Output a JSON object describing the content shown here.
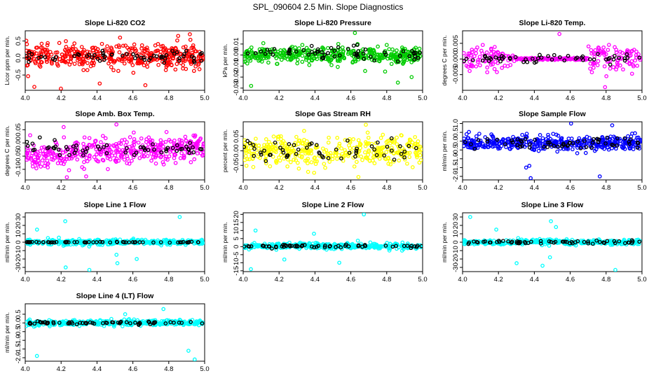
{
  "figure_title": "SPL_090604  2.5 Min. Slope Diagnostics",
  "chart_data": [
    {
      "type": "scatter",
      "title": "Slope Li-820 CO2",
      "ylabel": "Licor ppm per min.",
      "xlim": [
        4.0,
        5.0
      ],
      "ylim": [
        -0.95,
        0.8
      ],
      "xticks": [
        4.0,
        4.2,
        4.4,
        4.6,
        4.8,
        5.0
      ],
      "xtick_labels": [
        "4.0",
        "4.2",
        "4.4",
        "4.6",
        "4.8",
        "5.0"
      ],
      "yticks": [
        -0.5,
        0.0,
        0.5
      ],
      "ytick_labels": [
        "-0.5",
        "0.0",
        "0.5"
      ],
      "series": [
        {
          "name": "points",
          "color": "#ff0000",
          "center": 0.05,
          "spread": 0.28,
          "count": 420,
          "outlier_values": [
            -0.9,
            -0.85,
            0.7,
            0.65,
            -0.8,
            0.6,
            -0.75
          ]
        },
        {
          "name": "black",
          "color": "#000000",
          "center": 0.05,
          "spread": 0.15,
          "count": 60
        }
      ]
    },
    {
      "type": "scatter",
      "title": "Slope Li-820 Pressure",
      "ylabel": "kPa per min.",
      "xlim": [
        4.0,
        5.0
      ],
      "ylim": [
        -0.032,
        0.022
      ],
      "xticks": [
        4.0,
        4.2,
        4.4,
        4.6,
        4.8,
        5.0
      ],
      "xtick_labels": [
        "4.0",
        "4.2",
        "4.4",
        "4.6",
        "4.8",
        "5.0"
      ],
      "yticks": [
        -0.03,
        -0.02,
        -0.01,
        0.0,
        0.01
      ],
      "ytick_labels": [
        "-0.03",
        "-0.02",
        "-0.01",
        "0.00",
        "0.01"
      ],
      "series": [
        {
          "name": "points",
          "color": "#00cc00",
          "center": 0.0,
          "spread": 0.006,
          "count": 420,
          "outlier_values": [
            -0.025,
            -0.028,
            0.02,
            -0.02,
            -0.015
          ]
        },
        {
          "name": "black",
          "color": "#000000",
          "center": 0.002,
          "spread": 0.005,
          "count": 60
        }
      ]
    },
    {
      "type": "scatter",
      "title": "Slope Li-820 Temp.",
      "ylabel": "degrees C per min.",
      "xlim": [
        4.0,
        5.0
      ],
      "ylim": [
        -0.01,
        0.009
      ],
      "xticks": [
        4.0,
        4.2,
        4.4,
        4.6,
        4.8,
        5.0
      ],
      "xtick_labels": [
        "4.0",
        "4.2",
        "4.4",
        "4.6",
        "4.8",
        "5.0"
      ],
      "yticks": [
        -0.005,
        0.0,
        0.005
      ],
      "ytick_labels": [
        "-0.005",
        "0.000",
        "0.005"
      ],
      "series": [
        {
          "name": "points",
          "color": "#ff00ff",
          "center": 0.0,
          "spread": 0.0035,
          "count": 300,
          "quiet_range": [
            4.3,
            4.7
          ],
          "outlier_values": [
            -0.009,
            0.008
          ]
        },
        {
          "name": "black",
          "color": "#000000",
          "center": 0.0,
          "spread": 0.001,
          "count": 55
        }
      ]
    },
    {
      "type": "scatter",
      "title": "Slope Amb. Box Temp.",
      "ylabel": "degrees C per min.",
      "xlim": [
        4.0,
        5.0
      ],
      "ylim": [
        -0.14,
        0.08
      ],
      "xticks": [
        4.0,
        4.2,
        4.4,
        4.6,
        4.8,
        5.0
      ],
      "xtick_labels": [
        "4.0",
        "4.2",
        "4.4",
        "4.6",
        "4.8",
        "5.0"
      ],
      "yticks": [
        -0.1,
        -0.05,
        0.0,
        0.05
      ],
      "ytick_labels": [
        "-0.10",
        "-0.05",
        "0.00",
        "0.05"
      ],
      "series": [
        {
          "name": "points",
          "color": "#ff00ff",
          "center": -0.03,
          "spread": 0.04,
          "count": 420,
          "trend": 0.04,
          "outlier_values": [
            -0.13,
            0.07,
            0.06
          ]
        },
        {
          "name": "black",
          "color": "#000000",
          "center": -0.02,
          "spread": 0.02,
          "count": 60
        }
      ]
    },
    {
      "type": "scatter",
      "title": "Slope Gas Stream RH",
      "ylabel": "percent per min.",
      "xlim": [
        4.0,
        5.0
      ],
      "ylim": [
        -0.1,
        0.1
      ],
      "xticks": [
        4.0,
        4.2,
        4.4,
        4.6,
        4.8,
        5.0
      ],
      "xtick_labels": [
        "4.0",
        "4.2",
        "4.4",
        "4.6",
        "4.8",
        "5.0"
      ],
      "yticks": [
        -0.05,
        0.0,
        0.05
      ],
      "ytick_labels": [
        "-0.05",
        "0.00",
        "0.05"
      ],
      "series": [
        {
          "name": "points",
          "color": "#ffff00",
          "center": 0.0,
          "spread": 0.04,
          "count": 380,
          "outlier_values": [
            -0.09,
            0.09
          ]
        },
        {
          "name": "black",
          "color": "#000000",
          "center": 0.0,
          "spread": 0.03,
          "count": 55
        }
      ]
    },
    {
      "type": "scatter",
      "title": "Slope Sample Flow",
      "ylabel": "ml/min per min.",
      "xlim": [
        4.0,
        5.0
      ],
      "ylim": [
        -2.2,
        1.1
      ],
      "xticks": [
        4.0,
        4.2,
        4.4,
        4.6,
        4.8,
        5.0
      ],
      "xtick_labels": [
        "4.0",
        "4.2",
        "4.4",
        "4.6",
        "4.8",
        "5.0"
      ],
      "yticks": [
        -2.0,
        -1.5,
        -1.0,
        -0.5,
        0.0,
        0.5,
        1.0
      ],
      "ytick_labels": [
        "-2.0",
        "-1.5",
        "-1.0",
        "-0.5",
        "0.0",
        "0.5",
        "1.0"
      ],
      "series": [
        {
          "name": "points",
          "color": "#0000ff",
          "center": -0.1,
          "spread": 0.35,
          "count": 420,
          "outlier_values": [
            -2.1,
            -2.0,
            -1.5,
            -1.4,
            0.9,
            1.0
          ]
        },
        {
          "name": "black",
          "color": "#000000",
          "center": -0.1,
          "spread": 0.3,
          "count": 60
        }
      ]
    },
    {
      "type": "scatter",
      "title": "Slope Line 1 Flow",
      "ylabel": "ml/min per min.",
      "xlim": [
        4.0,
        5.0
      ],
      "ylim": [
        -35,
        35
      ],
      "xticks": [
        4.0,
        4.2,
        4.4,
        4.6,
        4.8,
        5.0
      ],
      "xtick_labels": [
        "4.0",
        "4.2",
        "4.4",
        "4.6",
        "4.8",
        "5.0"
      ],
      "yticks": [
        -30,
        -20,
        -10,
        0,
        10,
        20,
        30
      ],
      "ytick_labels": [
        "-30",
        "-20",
        "-10",
        "0",
        "10",
        "20",
        "30"
      ],
      "series": [
        {
          "name": "points",
          "color": "#00ffff",
          "center": 0,
          "spread": 2.5,
          "count": 380,
          "outlier_values": [
            -33,
            -30,
            -25,
            30,
            25,
            -20,
            15,
            -15
          ]
        },
        {
          "name": "black",
          "color": "#000000",
          "center": 0,
          "spread": 0.4,
          "count": 60
        }
      ]
    },
    {
      "type": "scatter",
      "title": "Slope Line 2 Flow",
      "ylabel": "ml/min per min.",
      "xlim": [
        4.0,
        5.0
      ],
      "ylim": [
        -15.5,
        21
      ],
      "xticks": [
        4.0,
        4.2,
        4.4,
        4.6,
        4.8,
        5.0
      ],
      "xtick_labels": [
        "4.0",
        "4.2",
        "4.4",
        "4.6",
        "4.8",
        "5.0"
      ],
      "yticks": [
        -15,
        -10,
        -5,
        0,
        5,
        10,
        15,
        20
      ],
      "ytick_labels": [
        "-15",
        "-10",
        "-5",
        "0",
        "5",
        "10",
        "15",
        "20"
      ],
      "series": [
        {
          "name": "points",
          "color": "#00ffff",
          "center": 0.3,
          "spread": 1.5,
          "count": 380,
          "outlier_values": [
            -14,
            20,
            10,
            -10,
            8,
            -8
          ]
        },
        {
          "name": "black",
          "color": "#000000",
          "center": 0.3,
          "spread": 0.8,
          "count": 60
        }
      ]
    },
    {
      "type": "scatter",
      "title": "Slope Line 3 Flow",
      "ylabel": "ml/min per min.",
      "xlim": [
        4.0,
        5.0
      ],
      "ylim": [
        -35,
        35
      ],
      "xticks": [
        4.0,
        4.2,
        4.4,
        4.6,
        4.8,
        5.0
      ],
      "xtick_labels": [
        "4.0",
        "4.2",
        "4.4",
        "4.6",
        "4.8",
        "5.0"
      ],
      "yticks": [
        -30,
        -20,
        -10,
        0,
        10,
        20,
        30
      ],
      "ytick_labels": [
        "-30",
        "-20",
        "-10",
        "0",
        "10",
        "20",
        "30"
      ],
      "series": [
        {
          "name": "points",
          "color": "#00ffff",
          "center": 0,
          "spread": 2.5,
          "count": 380,
          "outlier_values": [
            -33,
            -28,
            -25,
            30,
            25,
            18,
            -18,
            15
          ]
        },
        {
          "name": "black",
          "color": "#000000",
          "center": 0,
          "spread": 1.5,
          "count": 60
        }
      ]
    },
    {
      "type": "scatter",
      "title": "Slope Line 4 (LT) Flow",
      "ylabel": "ml/min per min.",
      "xlim": [
        4.0,
        5.0
      ],
      "ylim": [
        -2.2,
        1.1
      ],
      "xticks": [
        4.0,
        4.2,
        4.4,
        4.6,
        4.8,
        5.0
      ],
      "xtick_labels": [
        "4.0",
        "4.2",
        "4.4",
        "4.6",
        "4.8",
        "5.0"
      ],
      "yticks": [
        -2.0,
        -1.5,
        -1.0,
        -0.5,
        0.0,
        0.5
      ],
      "ytick_labels": [
        "-2.0",
        "-1.5",
        "-1.0",
        "-0.5",
        "0.0",
        "0.5"
      ],
      "series": [
        {
          "name": "points",
          "color": "#00ffff",
          "center": 0.0,
          "spread": 0.12,
          "count": 380,
          "outlier_values": [
            -2.1,
            -1.9,
            -1.6,
            0.8,
            0.5
          ]
        },
        {
          "name": "black",
          "color": "#000000",
          "center": 0.0,
          "spread": 0.07,
          "count": 60
        }
      ]
    }
  ]
}
